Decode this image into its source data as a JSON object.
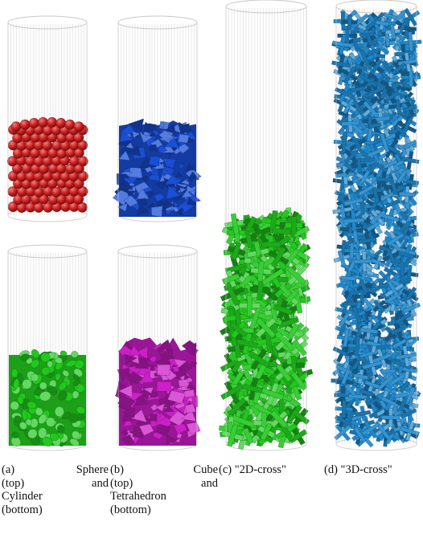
{
  "panels": [
    {
      "id": "a",
      "caption_lines": [
        "(a)        Sphere",
        "(top)        and",
        "Cylinder",
        "(bottom)"
      ],
      "containers": [
        {
          "label": "Sphere (top)",
          "shape": "sphere",
          "color": "#d42020",
          "fill_level": 0.5
        },
        {
          "label": "Cylinder (bottom)",
          "shape": "cylinder",
          "color": "#22c81e",
          "fill_level": 0.5
        }
      ]
    },
    {
      "id": "b",
      "caption_lines": [
        "(b)          Cube",
        "(top)        and",
        "Tetrahedron",
        "(bottom)"
      ],
      "containers": [
        {
          "label": "Cube (top)",
          "shape": "cube",
          "color": "#1a4fd6",
          "fill_level": 0.48
        },
        {
          "label": "Tetrahedron (bottom)",
          "shape": "tetrahedron",
          "color": "#cc1fc8",
          "fill_level": 0.58
        }
      ]
    },
    {
      "id": "c",
      "caption_lines": [
        "(c) \"2D-cross\""
      ],
      "containers": [
        {
          "label": "2D-cross",
          "shape": "cross2d",
          "color": "#22c81e",
          "fill_level": 0.52
        }
      ]
    },
    {
      "id": "d",
      "caption_lines": [
        "(d) \"3D-cross\""
      ],
      "containers": [
        {
          "label": "3D-cross",
          "shape": "cross3d",
          "color": "#1f88cc",
          "fill_level": 1.0
        }
      ]
    }
  ]
}
